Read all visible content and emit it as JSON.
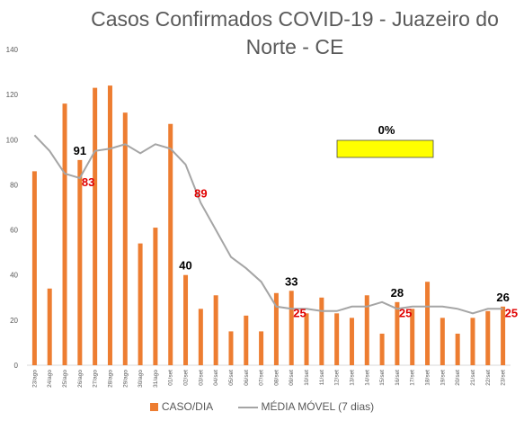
{
  "chart_data": {
    "type": "bar",
    "title_lines": [
      "Casos Confirmados COVID-19 - Juazeiro do",
      "Norte - CE"
    ],
    "categories": [
      "23/ago",
      "24/ago",
      "25/ago",
      "26/ago",
      "27/ago",
      "28/ago",
      "29/ago",
      "30/ago",
      "31/ago",
      "01/set",
      "02/set",
      "03/set",
      "04/set",
      "05/set",
      "06/set",
      "07/set",
      "08/set",
      "09/set",
      "10/set",
      "11/set",
      "12/set",
      "13/set",
      "14/set",
      "15/set",
      "16/set",
      "17/set",
      "18/set",
      "19/set",
      "20/set",
      "21/set",
      "22/set",
      "23/set"
    ],
    "series": [
      {
        "name": "CASO/DIA",
        "type": "bar",
        "color": "#ED7D31",
        "values": [
          86,
          34,
          116,
          91,
          123,
          124,
          112,
          54,
          61,
          107,
          40,
          25,
          31,
          15,
          22,
          15,
          32,
          33,
          23,
          30,
          23,
          21,
          31,
          14,
          28,
          25,
          37,
          21,
          14,
          21,
          24,
          26
        ]
      },
      {
        "name": "MÉDIA MÓVEL (7 dias)",
        "type": "line",
        "color": "#A5A5A5",
        "values": [
          102,
          95,
          85,
          83,
          95,
          96,
          98,
          94,
          98,
          96,
          89,
          72,
          60,
          48,
          43,
          37,
          26,
          25,
          25,
          24,
          24,
          26,
          26,
          28,
          25,
          26,
          26,
          26,
          25,
          23,
          25,
          25
        ]
      }
    ],
    "ylim": [
      0,
      140
    ],
    "yticks": [
      0,
      20,
      40,
      60,
      80,
      100,
      120,
      140
    ],
    "grid": false,
    "legend_position": "bottom",
    "annotations": [
      {
        "text": "91",
        "x": "26/ago",
        "y": 91,
        "color": "#000000",
        "pos": "above"
      },
      {
        "text": "83",
        "x": "26/ago",
        "y": 83,
        "color": "#E00000",
        "pos": "right"
      },
      {
        "text": "89",
        "x": "03/set",
        "y": 72,
        "color": "#E00000",
        "pos": "above"
      },
      {
        "text": "40",
        "x": "02/set",
        "y": 40,
        "color": "#000000",
        "pos": "above"
      },
      {
        "text": "33",
        "x": "09/set",
        "y": 33,
        "color": "#000000",
        "pos": "above"
      },
      {
        "text": "25",
        "x": "09/set",
        "y": 25,
        "color": "#E00000",
        "pos": "right"
      },
      {
        "text": "28",
        "x": "16/set",
        "y": 28,
        "color": "#000000",
        "pos": "above"
      },
      {
        "text": "25",
        "x": "16/set",
        "y": 25,
        "color": "#E00000",
        "pos": "right"
      },
      {
        "text": "26",
        "x": "23/set",
        "y": 26,
        "color": "#000000",
        "pos": "above"
      },
      {
        "text": "25",
        "x": "23/set",
        "y": 25,
        "color": "#E00000",
        "pos": "right"
      }
    ],
    "indicator": {
      "text": "0%",
      "color": "#FFFF00"
    }
  }
}
